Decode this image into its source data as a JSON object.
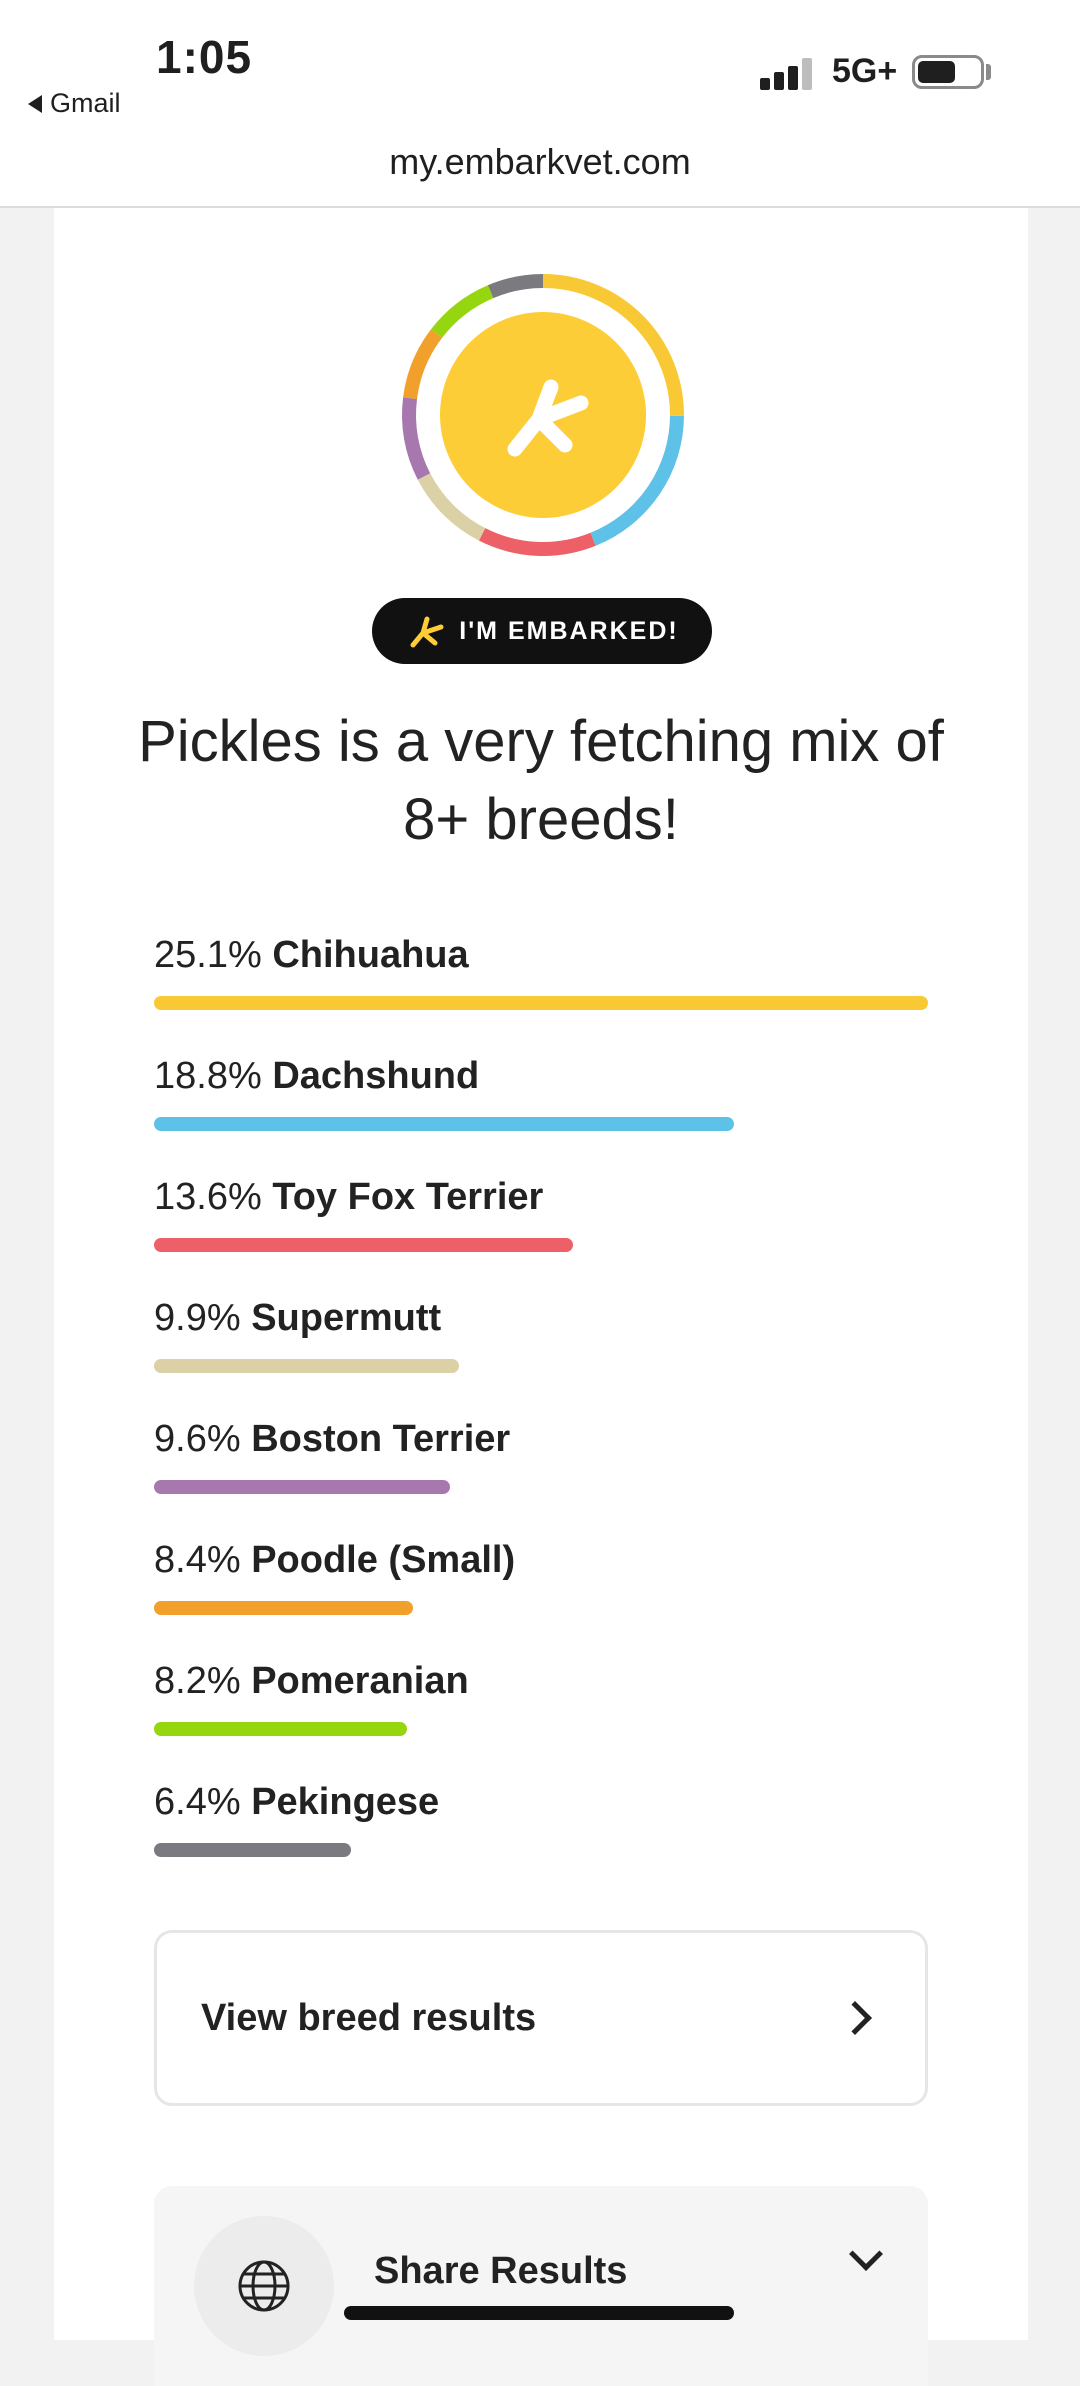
{
  "status_bar": {
    "time": "1:05",
    "back_app": "Gmail",
    "network": "5G+"
  },
  "browser": {
    "url": "my.embarkvet.com"
  },
  "badge": {
    "label": "I'M EMBARKED!"
  },
  "headline": "Pickles is a very fetching mix of 8+ breeds!",
  "breeds": [
    {
      "pct": "25.1%",
      "name": "Chihuahua",
      "value": 25.1,
      "color": "#f9c935"
    },
    {
      "pct": "18.8%",
      "name": "Dachshund",
      "value": 18.8,
      "color": "#5ec1e8"
    },
    {
      "pct": "13.6%",
      "name": "Toy Fox Terrier",
      "value": 13.6,
      "color": "#ee6067"
    },
    {
      "pct": "9.9%",
      "name": "Supermutt",
      "value": 9.9,
      "color": "#dcd0a6"
    },
    {
      "pct": "9.6%",
      "name": "Boston Terrier",
      "value": 9.6,
      "color": "#a678ae"
    },
    {
      "pct": "8.4%",
      "name": "Poodle (Small)",
      "value": 8.4,
      "color": "#f1a02b"
    },
    {
      "pct": "8.2%",
      "name": "Pomeranian",
      "value": 8.2,
      "color": "#96d60e"
    },
    {
      "pct": "6.4%",
      "name": "Pekingese",
      "value": 6.4,
      "color": "#7a7a80"
    }
  ],
  "actions": {
    "view_results": "View breed results",
    "share_results": "Share Results"
  },
  "colors": {
    "brand_yellow": "#fdcd38",
    "badge_bg": "#111111"
  },
  "icons": {
    "back": "back-arrow-icon",
    "signal": "signal-icon",
    "battery": "battery-icon",
    "logo": "embark-logo-icon",
    "chevron": "chevron-right-icon",
    "globe": "globe-icon",
    "expand": "chevron-down-icon"
  }
}
